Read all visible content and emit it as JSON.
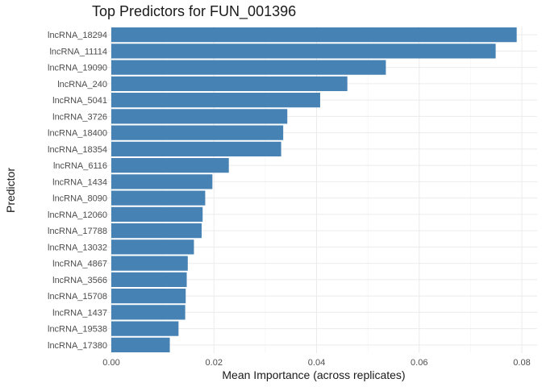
{
  "chart_data": {
    "type": "bar",
    "orientation": "horizontal",
    "title": "Top Predictors for FUN_001396",
    "xlabel": "Mean Importance (across replicates)",
    "ylabel": "Predictor",
    "xlim": [
      0,
      0.08
    ],
    "xticks": [
      "0.00",
      "0.02",
      "0.04",
      "0.06",
      "0.08"
    ],
    "bar_color": "#4682b4",
    "grid": true,
    "legend": "none",
    "categories": [
      "lncRNA_18294",
      "lncRNA_11114",
      "lncRNA_19090",
      "lncRNA_240",
      "lncRNA_5041",
      "lncRNA_3726",
      "lncRNA_18400",
      "lncRNA_18354",
      "lncRNA_6116",
      "lncRNA_1434",
      "lncRNA_8090",
      "lncRNA_12060",
      "lncRNA_17788",
      "lncRNA_13032",
      "lncRNA_4867",
      "lncRNA_3566",
      "lncRNA_15708",
      "lncRNA_1437",
      "lncRNA_19538",
      "lncRNA_17380"
    ],
    "values": [
      0.079,
      0.0749,
      0.0535,
      0.046,
      0.0407,
      0.0343,
      0.0335,
      0.0331,
      0.0229,
      0.0197,
      0.0183,
      0.0178,
      0.0176,
      0.0161,
      0.0149,
      0.0147,
      0.0145,
      0.0144,
      0.0131,
      0.0114
    ]
  }
}
